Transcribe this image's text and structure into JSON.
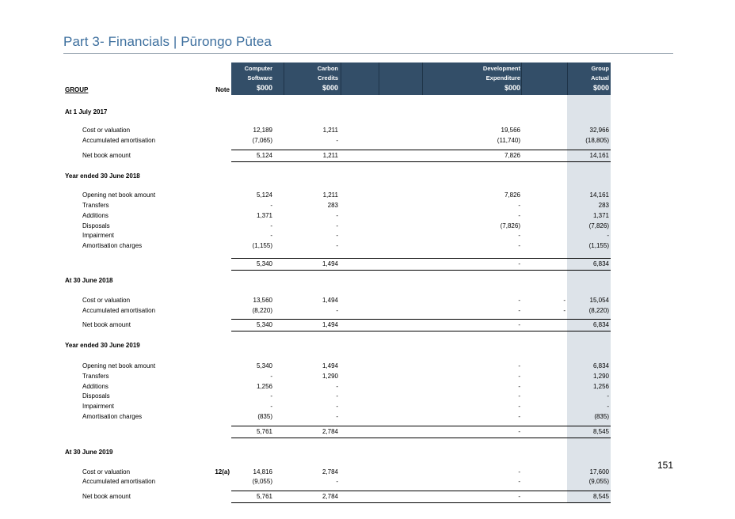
{
  "title": "Part 3- Financials | Pūrongo Pūtea",
  "page_number": "151",
  "table": {
    "group_label": "GROUP",
    "note_label": "Note",
    "columns": [
      {
        "line1": "Computer",
        "line2": "Software",
        "unit": "$000"
      },
      {
        "line1": "Carbon",
        "line2": "Credits",
        "unit": "$000"
      },
      {
        "line1": "",
        "line2": "",
        "unit": ""
      },
      {
        "line1": "",
        "line2": "",
        "unit": ""
      },
      {
        "line1": "Development",
        "line2": "Expenditure",
        "unit": "$000"
      },
      {
        "line1": "",
        "line2": "",
        "unit": ""
      },
      {
        "line1": "Group",
        "line2": "Actual",
        "unit": "$000"
      }
    ],
    "rows": [
      {
        "type": "section",
        "label": "At 1 July 2017"
      },
      {
        "type": "row",
        "label": "Cost or valuation",
        "note": "",
        "cs": "12,189",
        "cc": "1,211",
        "de": "19,566",
        "ex": "",
        "ga": "32,966"
      },
      {
        "type": "row",
        "label": "Accumulated amortisation",
        "note": "",
        "cs": "(7,065)",
        "cc": "-",
        "de": "(11,740)",
        "ex": "",
        "ga": "(18,805)"
      },
      {
        "type": "total",
        "label": "Net book amount",
        "note": "",
        "cs": "5,124",
        "cc": "1,211",
        "de": "7,826",
        "ex": "",
        "ga": "14,161"
      },
      {
        "type": "section",
        "label": "Year ended 30 June 2018"
      },
      {
        "type": "row",
        "label": "Opening net book amount",
        "note": "",
        "cs": "5,124",
        "cc": "1,211",
        "de": "7,826",
        "ex": "",
        "ga": "14,161"
      },
      {
        "type": "row",
        "label": "Transfers",
        "note": "",
        "cs": "-",
        "cc": "283",
        "de": "-",
        "ex": "",
        "ga": "283"
      },
      {
        "type": "row",
        "label": "Additions",
        "note": "",
        "cs": "1,371",
        "cc": "-",
        "de": "-",
        "ex": "",
        "ga": "1,371"
      },
      {
        "type": "row",
        "label": "Disposals",
        "note": "",
        "cs": "-",
        "cc": "-",
        "de": "(7,826)",
        "ex": "",
        "ga": "(7,826)"
      },
      {
        "type": "row",
        "label": "Impairment",
        "note": "",
        "cs": "-",
        "cc": "-",
        "de": "-",
        "ex": "",
        "ga": "-"
      },
      {
        "type": "row",
        "label": "Amortisation charges",
        "note": "",
        "cs": "(1,155)",
        "cc": "-",
        "de": "-",
        "ex": "",
        "ga": "(1,155)"
      },
      {
        "type": "total",
        "label": "",
        "note": "",
        "cs": "5,340",
        "cc": "1,494",
        "de": "-",
        "ex": "",
        "ga": "6,834"
      },
      {
        "type": "section",
        "label": "At 30 June 2018"
      },
      {
        "type": "row",
        "label": "Cost or valuation",
        "note": "",
        "cs": "13,560",
        "cc": "1,494",
        "de": "-",
        "ex": "-",
        "ga": "15,054"
      },
      {
        "type": "row",
        "label": "Accumulated amortisation",
        "note": "",
        "cs": "(8,220)",
        "cc": "-",
        "de": "-",
        "ex": "-",
        "ga": "(8,220)"
      },
      {
        "type": "total",
        "label": "Net book amount",
        "note": "",
        "cs": "5,340",
        "cc": "1,494",
        "de": "-",
        "ex": "",
        "ga": "6,834"
      },
      {
        "type": "section",
        "label": "Year ended 30 June 2019"
      },
      {
        "type": "row",
        "label": "Opening net book amount",
        "note": "",
        "cs": "5,340",
        "cc": "1,494",
        "de": "-",
        "ex": "",
        "ga": "6,834"
      },
      {
        "type": "row",
        "label": "Transfers",
        "note": "",
        "cs": "-",
        "cc": "1,290",
        "de": "-",
        "ex": "",
        "ga": "1,290"
      },
      {
        "type": "row",
        "label": "Additions",
        "note": "",
        "cs": "1,256",
        "cc": "-",
        "de": "-",
        "ex": "",
        "ga": "1,256"
      },
      {
        "type": "row",
        "label": "Disposals",
        "note": "",
        "cs": "-",
        "cc": "-",
        "de": "-",
        "ex": "",
        "ga": "-"
      },
      {
        "type": "row",
        "label": "Impairment",
        "note": "",
        "cs": "-",
        "cc": "-",
        "de": "-",
        "ex": "",
        "ga": "-"
      },
      {
        "type": "row",
        "label": "Amortisation charges",
        "note": "",
        "cs": "(835)",
        "cc": "-",
        "de": "-",
        "ex": "",
        "ga": "(835)"
      },
      {
        "type": "total",
        "label": "",
        "note": "",
        "cs": "5,761",
        "cc": "2,784",
        "de": "-",
        "ex": "",
        "ga": "8,545"
      },
      {
        "type": "section",
        "label": "At 30 June 2019"
      },
      {
        "type": "row",
        "label": "Cost or valuation",
        "note": "12(a)",
        "cs": "14,816",
        "cc": "2,784",
        "de": "-",
        "ex": "",
        "ga": "17,600"
      },
      {
        "type": "row",
        "label": "Accumulated amortisation",
        "note": "",
        "cs": "(9,055)",
        "cc": "-",
        "de": "-",
        "ex": "",
        "ga": "(9,055)"
      },
      {
        "type": "total",
        "label": "Net book amount",
        "note": "",
        "cs": "5,761",
        "cc": "2,784",
        "de": "-",
        "ex": "",
        "ga": "8,545"
      }
    ]
  }
}
